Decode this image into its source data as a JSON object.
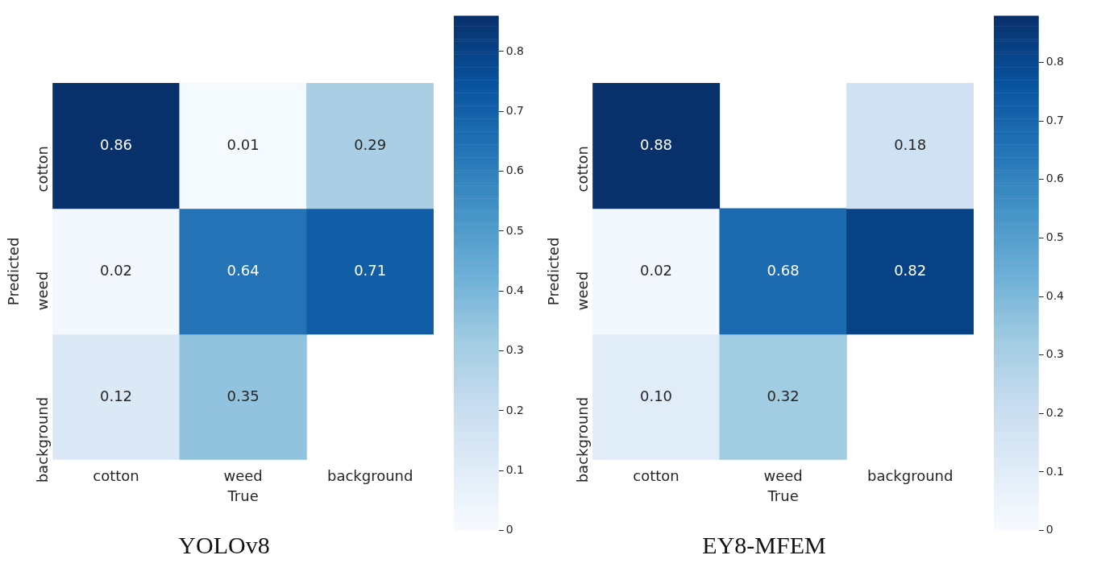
{
  "chart_data": [
    {
      "type": "heatmap",
      "title": "YOLOv8",
      "xlabel": "True",
      "ylabel": "Predicted",
      "categories": [
        "cotton",
        "weed",
        "background"
      ],
      "y_categories": [
        "cotton",
        "weed",
        "background"
      ],
      "cells": [
        [
          0.86,
          0.01,
          0.29
        ],
        [
          0.02,
          0.64,
          0.71
        ],
        [
          0.12,
          0.35,
          null
        ]
      ],
      "data_labels": true,
      "clim": [
        0,
        0.86
      ],
      "cticks": [
        0,
        0.1,
        0.2,
        0.3,
        0.4,
        0.5,
        0.6,
        0.7,
        0.8
      ]
    },
    {
      "type": "heatmap",
      "title": "EY8-MFEM",
      "xlabel": "True",
      "ylabel": "Predicted",
      "categories": [
        "cotton",
        "weed",
        "background"
      ],
      "y_categories": [
        "cotton",
        "weed",
        "background"
      ],
      "cells": [
        [
          0.88,
          null,
          0.18
        ],
        [
          0.02,
          0.68,
          0.82
        ],
        [
          0.1,
          0.32,
          null
        ]
      ],
      "cell_labels": [
        [
          "0.88",
          null,
          "0.18"
        ],
        [
          "0.02",
          "0.68",
          "0.82"
        ],
        [
          "0.10",
          "0.32",
          null
        ]
      ],
      "data_labels": true,
      "clim": [
        0,
        0.88
      ],
      "cticks": [
        0,
        0.1,
        0.2,
        0.3,
        0.4,
        0.5,
        0.6,
        0.7,
        0.8
      ]
    }
  ]
}
